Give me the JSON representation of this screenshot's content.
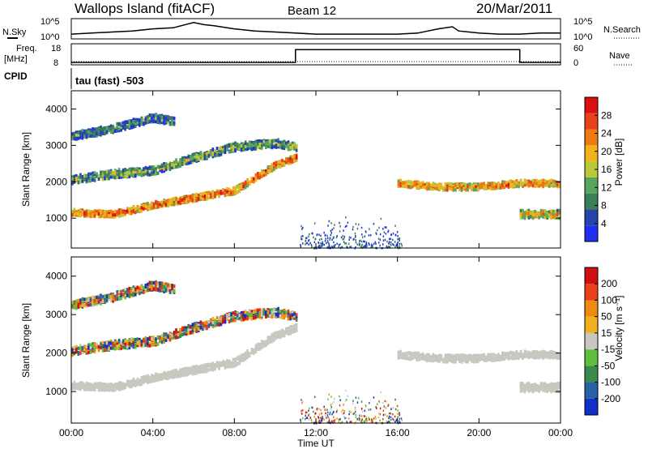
{
  "header": {
    "station": "Wallops Island (fitACF)",
    "beam": "Beam 12",
    "date": "20/Mar/2011"
  },
  "noise_panel": {
    "left_label": "N.Sky",
    "right_label": "N.Search",
    "left_ticks": [
      "10^5",
      "10^0"
    ],
    "right_ticks": [
      "10^5",
      "10^0"
    ],
    "series_sky": [
      [
        0,
        3
      ],
      [
        1,
        4
      ],
      [
        2,
        5
      ],
      [
        3,
        6
      ],
      [
        4,
        8
      ],
      [
        5,
        9
      ],
      [
        6,
        14
      ],
      [
        6.5,
        12
      ],
      [
        7,
        11
      ],
      [
        8,
        8
      ],
      [
        9,
        6
      ],
      [
        10,
        5
      ],
      [
        11,
        4
      ],
      [
        12,
        3
      ],
      [
        13,
        3
      ],
      [
        14,
        3
      ],
      [
        15,
        3
      ],
      [
        16,
        3
      ],
      [
        17,
        4
      ],
      [
        18,
        8
      ],
      [
        18.7,
        10
      ],
      [
        19,
        6
      ],
      [
        20,
        4
      ],
      [
        21,
        3
      ],
      [
        22,
        3
      ],
      [
        23,
        4
      ],
      [
        24,
        4
      ]
    ]
  },
  "freq_panel": {
    "left_label": "Freq.",
    "left_unit": "[MHz]",
    "left_ticks": [
      "18",
      "8"
    ],
    "right_label": "Nave",
    "right_ticks": [
      "60",
      "0"
    ],
    "freq_steps": [
      [
        0,
        8
      ],
      [
        11,
        8
      ],
      [
        11,
        15.5
      ],
      [
        22,
        15.5
      ],
      [
        22,
        8
      ],
      [
        24,
        8
      ]
    ]
  },
  "cpid": {
    "label": "CPID",
    "value": "tau (fast) -503"
  },
  "x_axis": {
    "ticks": [
      "00:00",
      "04:00",
      "08:00",
      "12:00",
      "16:00",
      "20:00",
      "00:00"
    ],
    "label": "Time UT"
  },
  "chart_data": [
    {
      "type": "heatmap",
      "ylabel": "Slant Range [km]",
      "yticks": [
        1000,
        2000,
        3000,
        4000
      ],
      "ylim": [
        180,
        4500
      ],
      "xlim": [
        0,
        24
      ],
      "colorbar": {
        "label": "Power [dB]",
        "ticks": [
          "4",
          "8",
          "12",
          "16",
          "20",
          "24",
          "28"
        ],
        "colors": [
          "#1f2ef0",
          "#2545a8",
          "#3b7f5a",
          "#5aa55e",
          "#b8c93a",
          "#f2b21a",
          "#f07a12",
          "#e8421a",
          "#d81010"
        ]
      },
      "echo_bands": [
        {
          "name": "ground scatter",
          "points": [
            [
              0,
              1200
            ],
            [
              2,
              1150
            ],
            [
              4,
              1400
            ],
            [
              6,
              1600
            ],
            [
              8,
              1800
            ],
            [
              10,
              2500
            ],
            [
              11,
              2700
            ]
          ],
          "level": 26
        },
        {
          "name": "upper band",
          "points": [
            [
              0,
              2100
            ],
            [
              2,
              2250
            ],
            [
              4,
              2350
            ],
            [
              6,
              2700
            ],
            [
              8,
              3000
            ],
            [
              10,
              3100
            ],
            [
              11,
              3000
            ]
          ],
          "level": 14
        },
        {
          "name": "top band",
          "points": [
            [
              0,
              3300
            ],
            [
              2,
              3500
            ],
            [
              4,
              3800
            ],
            [
              5,
              3700
            ]
          ],
          "level": 10
        },
        {
          "name": "evening band",
          "points": [
            [
              16,
              2000
            ],
            [
              18,
              1900
            ],
            [
              20,
              1900
            ],
            [
              22,
              2000
            ],
            [
              24,
              2000
            ]
          ],
          "level": 24
        },
        {
          "name": "late band",
          "points": [
            [
              22,
              1150
            ],
            [
              24,
              1150
            ]
          ],
          "level": 20
        }
      ]
    },
    {
      "type": "heatmap",
      "ylabel": "Slant Range [km]",
      "yticks": [
        1000,
        2000,
        3000,
        4000
      ],
      "ylim": [
        180,
        4500
      ],
      "xlim": [
        0,
        24
      ],
      "colorbar": {
        "label": "Velocity [m s⁻¹]",
        "ticks": [
          "200",
          "100",
          "50",
          "15",
          "-15",
          "-50",
          "-100",
          "-200"
        ],
        "colors": [
          "#1030c8",
          "#2a60a8",
          "#3a8a4a",
          "#5fc040",
          "#c8c8c0",
          "#f0b020",
          "#f08a10",
          "#e84018",
          "#d01010"
        ]
      },
      "ground_scatter_color": "#c8c8c0"
    }
  ],
  "colors": {
    "frame": "#000000",
    "ground_scatter": "#c8c8c0"
  }
}
